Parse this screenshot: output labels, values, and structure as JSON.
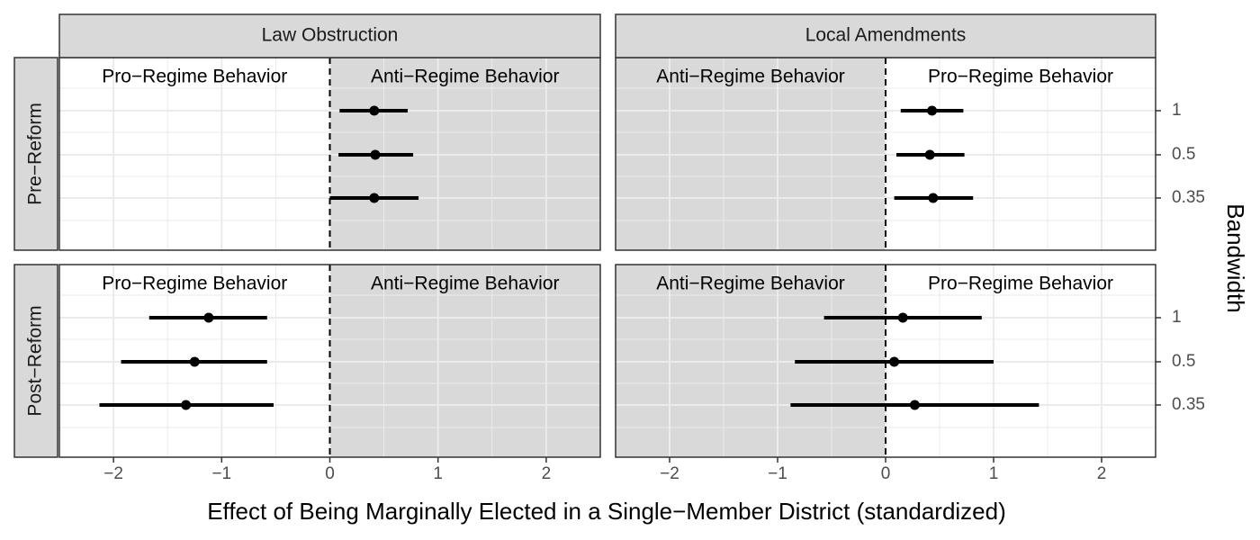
{
  "chart_data": {
    "type": "coefficient-plot",
    "xlabel": "Effect of Being Marginally Elected in a Single−Member District (standardized)",
    "ylabel_right": "Bandwidth",
    "xlim": [
      -2.5,
      2.5
    ],
    "x_ticks": [
      -2,
      -1,
      0,
      1,
      2
    ],
    "x_tick_labels": [
      "−2",
      "−1",
      "0",
      "1",
      "2"
    ],
    "y_categories": [
      "1",
      "0.5",
      "0.35"
    ],
    "grid": true,
    "columns": [
      "Law Obstruction",
      "Local Amendments"
    ],
    "rows": [
      "Pre−Reform",
      "Post−Reform"
    ],
    "panels": [
      {
        "column": "Law Obstruction",
        "row": "Pre−Reform",
        "shaded_side": "right",
        "left_label": "Pro−Regime Behavior",
        "right_label": "Anti−Regime Behavior",
        "points": [
          {
            "bandwidth": "1",
            "estimate": 0.41,
            "low": 0.09,
            "high": 0.72
          },
          {
            "bandwidth": "0.5",
            "estimate": 0.42,
            "low": 0.08,
            "high": 0.77
          },
          {
            "bandwidth": "0.35",
            "estimate": 0.41,
            "low": 0.0,
            "high": 0.82
          }
        ]
      },
      {
        "column": "Local Amendments",
        "row": "Pre−Reform",
        "shaded_side": "left",
        "left_label": "Anti−Regime Behavior",
        "right_label": "Pro−Regime Behavior",
        "points": [
          {
            "bandwidth": "1",
            "estimate": 0.43,
            "low": 0.14,
            "high": 0.72
          },
          {
            "bandwidth": "0.5",
            "estimate": 0.41,
            "low": 0.1,
            "high": 0.73
          },
          {
            "bandwidth": "0.35",
            "estimate": 0.44,
            "low": 0.08,
            "high": 0.81
          }
        ]
      },
      {
        "column": "Law Obstruction",
        "row": "Post−Reform",
        "shaded_side": "right",
        "left_label": "Pro−Regime Behavior",
        "right_label": "Anti−Regime Behavior",
        "points": [
          {
            "bandwidth": "1",
            "estimate": -1.12,
            "low": -1.67,
            "high": -0.58
          },
          {
            "bandwidth": "0.5",
            "estimate": -1.25,
            "low": -1.93,
            "high": -0.58
          },
          {
            "bandwidth": "0.35",
            "estimate": -1.33,
            "low": -2.13,
            "high": -0.52
          }
        ]
      },
      {
        "column": "Local Amendments",
        "row": "Post−Reform",
        "shaded_side": "left",
        "left_label": "Anti−Regime Behavior",
        "right_label": "Pro−Regime Behavior",
        "points": [
          {
            "bandwidth": "1",
            "estimate": 0.16,
            "low": -0.57,
            "high": 0.89
          },
          {
            "bandwidth": "0.5",
            "estimate": 0.08,
            "low": -0.84,
            "high": 1.0
          },
          {
            "bandwidth": "0.35",
            "estimate": 0.27,
            "low": -0.88,
            "high": 1.42
          }
        ]
      }
    ],
    "colors": {
      "strip_fill": "#d9d9d9",
      "shade_fill": "#d9d9d9",
      "grid": "#ebebeb",
      "point": "#000000",
      "border": "#333333"
    }
  }
}
